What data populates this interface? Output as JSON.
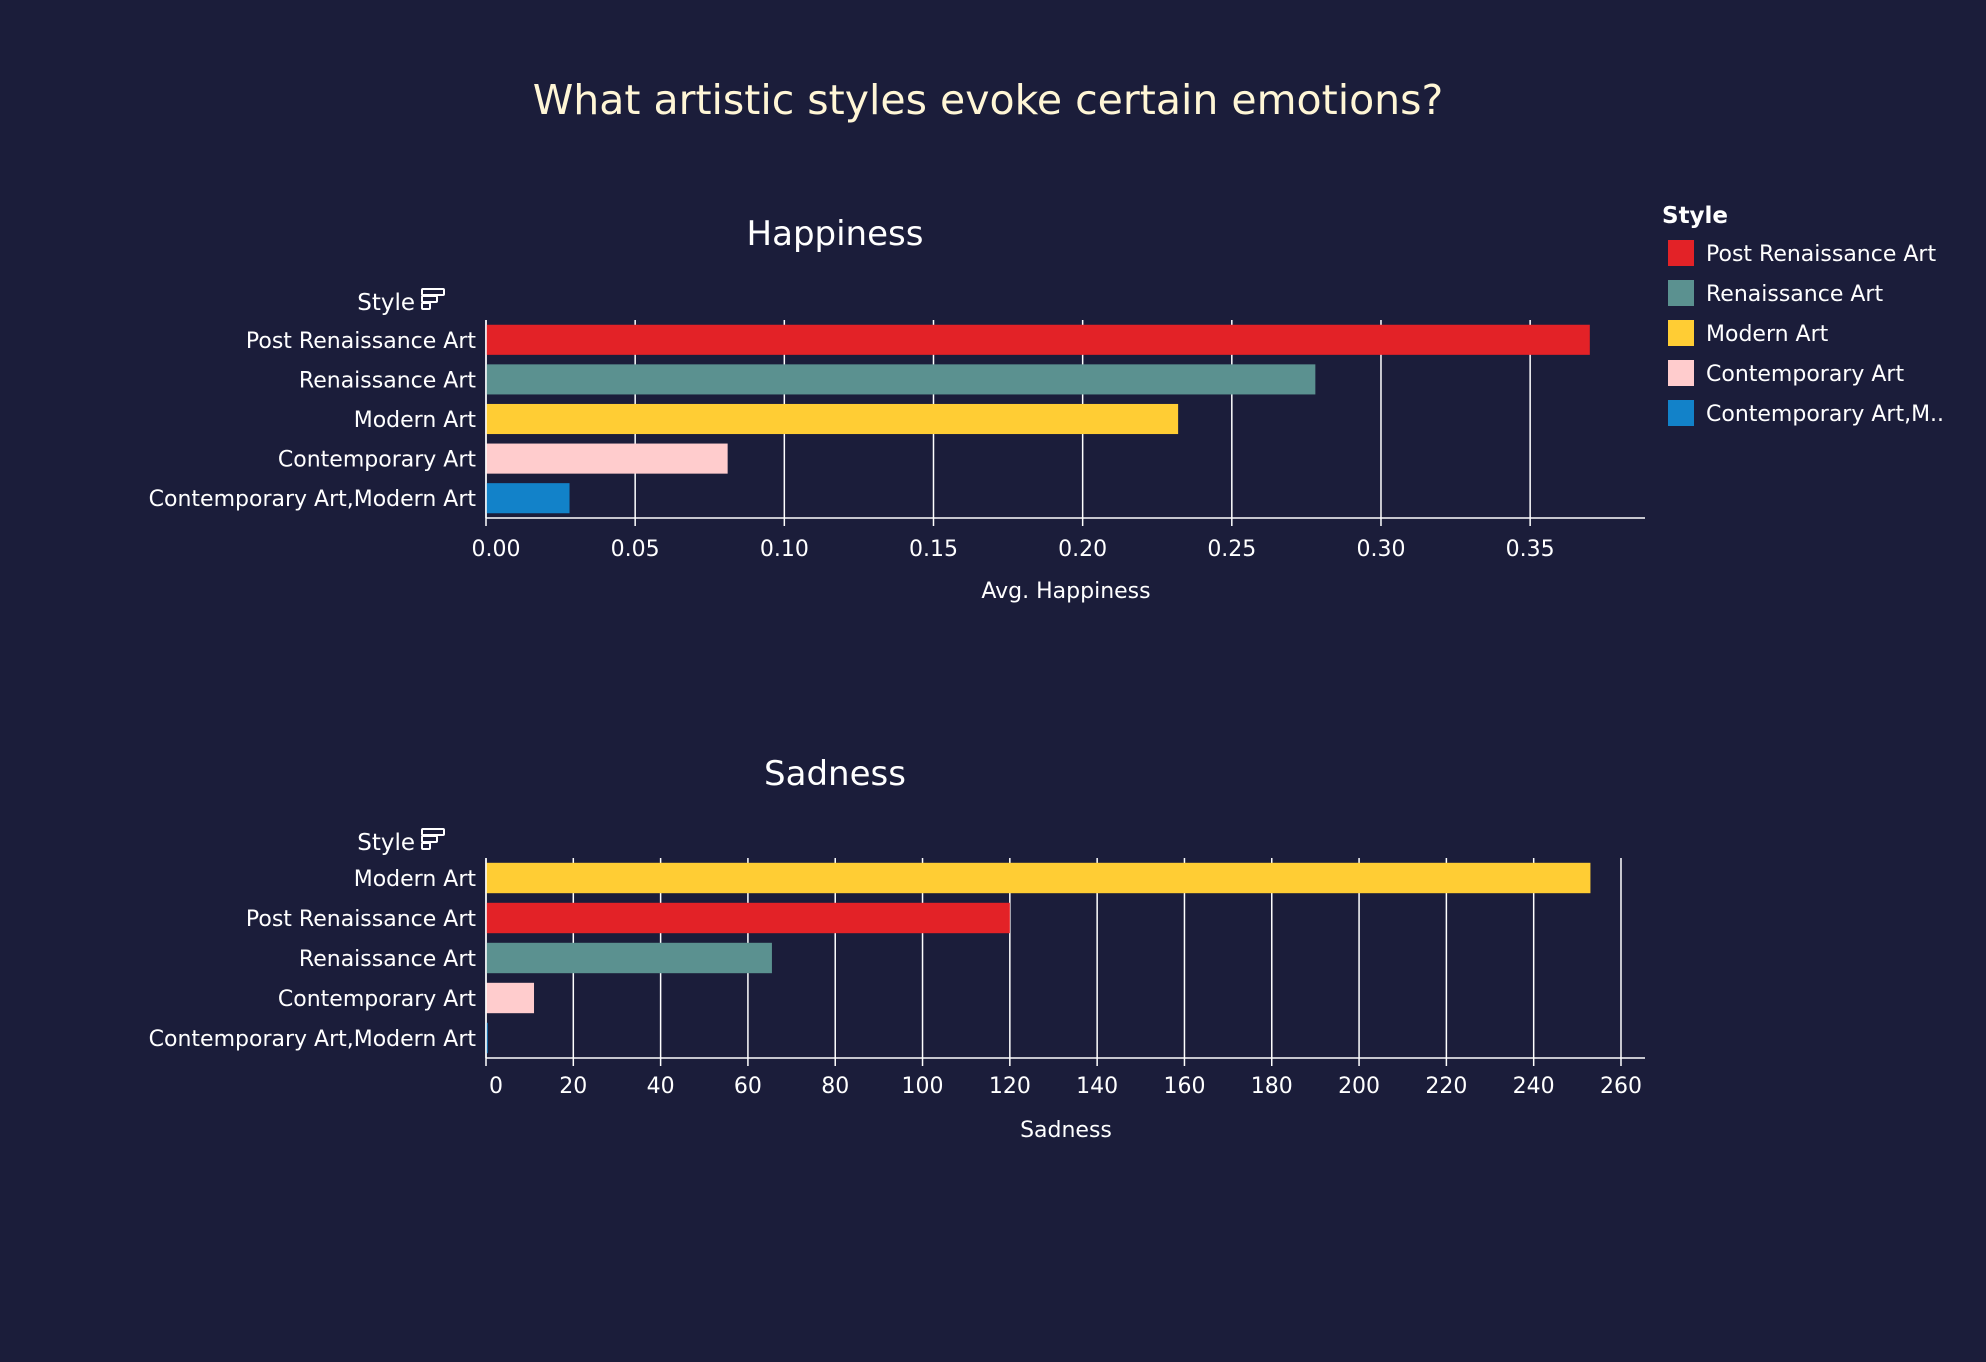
{
  "page": {
    "title": "What artistic styles evoke certain emotions?",
    "background": "#1b1d3a",
    "text_color": "#ffffff",
    "title_color": "#fff6d6",
    "grid_color": "#ffffff"
  },
  "legend": {
    "title": "Style",
    "items": [
      {
        "label": "Post Renaissance Art",
        "color": "#e32227"
      },
      {
        "label": "Renaissance Art",
        "color": "#5b9190"
      },
      {
        "label": "Modern Art",
        "color": "#ffcd34"
      },
      {
        "label": "Contemporary Art",
        "color": "#ffcccd"
      },
      {
        "label": "Contemporary Art,M..",
        "color": "#1282c9"
      }
    ]
  },
  "chart_data": [
    {
      "type": "bar",
      "orientation": "horizontal",
      "title": "Happiness",
      "ylabel": "Style",
      "xlabel": "Avg. Happiness",
      "categories": [
        "Post Renaissance Art",
        "Renaissance Art",
        "Modern Art",
        "Contemporary Art",
        "Contemporary Art,Modern Art"
      ],
      "values": [
        0.37,
        0.278,
        0.232,
        0.081,
        0.028
      ],
      "colors": [
        "#e32227",
        "#5b9190",
        "#ffcd34",
        "#ffcccd",
        "#1282c9"
      ],
      "xticks": [
        "0.00",
        "0.05",
        "0.10",
        "0.15",
        "0.20",
        "0.25",
        "0.30",
        "0.35"
      ],
      "tick_values": [
        0,
        0.05,
        0.1,
        0.15,
        0.2,
        0.25,
        0.3,
        0.35
      ],
      "xlim": [
        0,
        0.3885
      ],
      "grid": true
    },
    {
      "type": "bar",
      "orientation": "horizontal",
      "title": "Sadness",
      "ylabel": "Style",
      "xlabel": "Sadness",
      "categories": [
        "Modern Art",
        "Post Renaissance Art",
        "Renaissance Art",
        "Contemporary Art",
        "Contemporary Art,Modern Art"
      ],
      "values": [
        253,
        120,
        65.5,
        11,
        0.4
      ],
      "colors": [
        "#ffcd34",
        "#e32227",
        "#5b9190",
        "#ffcccd",
        "#1282c9"
      ],
      "xticks": [
        "0",
        "20",
        "40",
        "60",
        "80",
        "100",
        "120",
        "140",
        "160",
        "180",
        "200",
        "220",
        "240",
        "260"
      ],
      "tick_values": [
        0,
        20,
        40,
        60,
        80,
        100,
        120,
        140,
        160,
        180,
        200,
        220,
        240,
        260
      ],
      "xlim": [
        0,
        265.5
      ],
      "grid": true
    }
  ]
}
